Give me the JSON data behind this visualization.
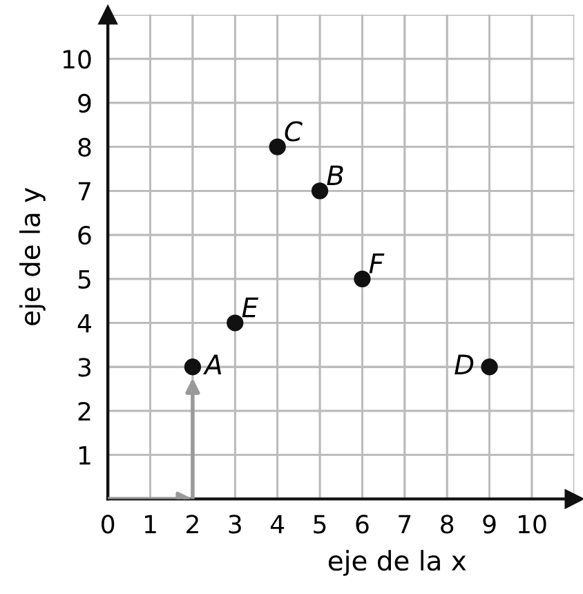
{
  "chart_data": {
    "type": "scatter",
    "xlabel": "eje de la x",
    "ylabel": "eje de la y",
    "x": [
      2,
      5,
      4,
      9,
      3,
      6
    ],
    "series": [
      {
        "color": "#111111",
        "values": [
          3,
          7,
          8,
          3,
          4,
          5
        ]
      }
    ],
    "annotations": [
      {
        "text": "A",
        "x": 2,
        "y": 3
      },
      {
        "text": "B",
        "x": 5,
        "y": 7
      },
      {
        "text": "C",
        "x": 4,
        "y": 8
      },
      {
        "text": "D",
        "x": 9,
        "y": 3
      },
      {
        "text": "E",
        "x": 3,
        "y": 4
      },
      {
        "text": "F",
        "x": 6,
        "y": 5
      }
    ],
    "xlim": [
      0,
      11
    ],
    "ylim": [
      0,
      11
    ],
    "xticks": [
      0,
      1,
      2,
      3,
      4,
      5,
      6,
      7,
      8,
      9,
      10
    ],
    "yticks": [
      1,
      2,
      3,
      4,
      5,
      6,
      7,
      8,
      9,
      10
    ],
    "grid": true,
    "marker": "circle"
  }
}
